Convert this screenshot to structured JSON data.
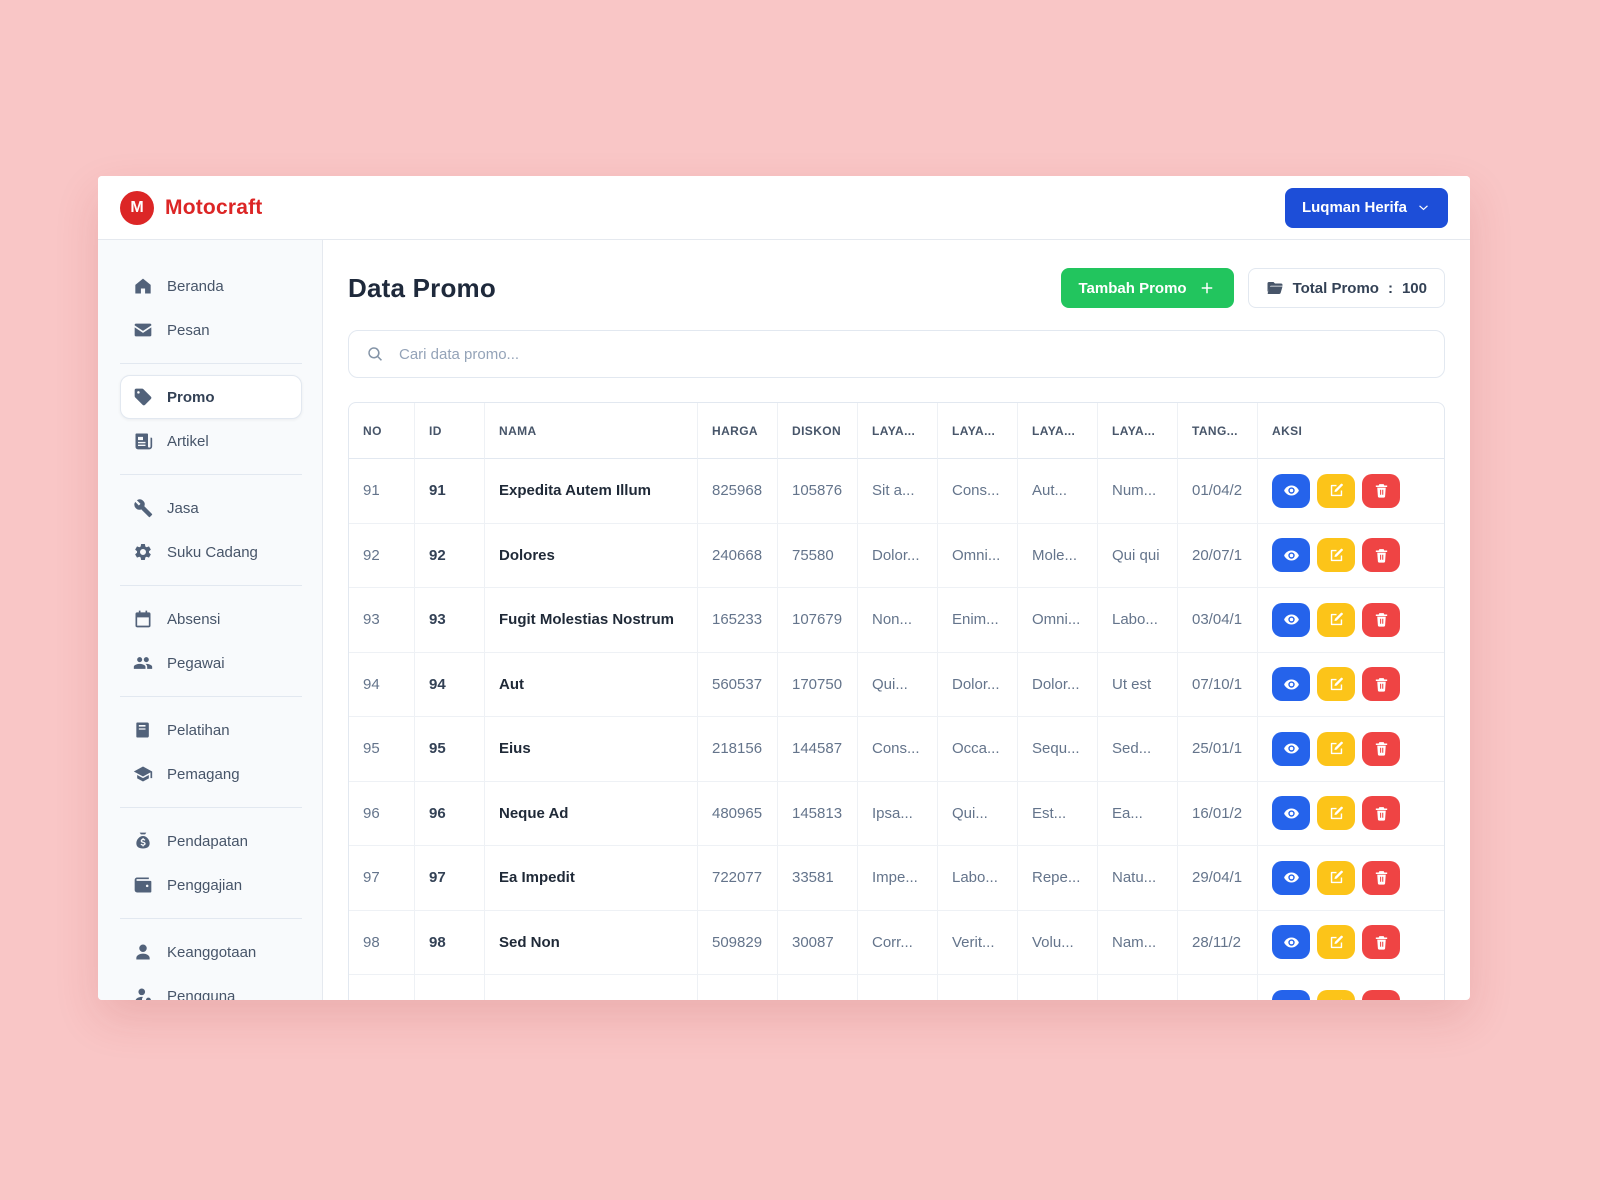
{
  "colors": {
    "background_pink": "#f9c6c6",
    "brand_red": "#dc2626",
    "user_button_blue": "#1d4ed8",
    "add_button_green": "#22c55e",
    "action_view_blue": "#2563eb",
    "action_edit_yellow": "#fcc419",
    "action_delete_red": "#ef4444"
  },
  "header": {
    "brand": "Motocraft",
    "brand_initial": "M",
    "user_button": {
      "label": "Luqman Herifa",
      "icon": "chevron-down-icon"
    }
  },
  "sidebar": {
    "groups": [
      [
        {
          "label": "Beranda",
          "icon": "home-icon"
        },
        {
          "label": "Pesan",
          "icon": "mail-icon"
        }
      ],
      [
        {
          "label": "Promo",
          "icon": "tag-icon",
          "active": true
        },
        {
          "label": "Artikel",
          "icon": "newspaper-icon"
        }
      ],
      [
        {
          "label": "Jasa",
          "icon": "wrench-icon"
        },
        {
          "label": "Suku Cadang",
          "icon": "gear-icon"
        }
      ],
      [
        {
          "label": "Absensi",
          "icon": "calendar-icon"
        },
        {
          "label": "Pegawai",
          "icon": "people-icon"
        }
      ],
      [
        {
          "label": "Pelatihan",
          "icon": "book-icon"
        },
        {
          "label": "Pemagang",
          "icon": "graduate-icon"
        }
      ],
      [
        {
          "label": "Pendapatan",
          "icon": "moneybag-icon"
        },
        {
          "label": "Penggajian",
          "icon": "wallet-icon"
        }
      ],
      [
        {
          "label": "Keanggotaan",
          "icon": "user-icon"
        },
        {
          "label": "Pengguna",
          "icon": "usergear-icon"
        }
      ]
    ]
  },
  "main": {
    "title": "Data Promo",
    "add_button": {
      "label": "Tambah Promo",
      "icon": "plus-icon"
    },
    "total_badge": {
      "icon": "folder-icon",
      "label": "Total Promo",
      "separator": ":",
      "value": "100"
    },
    "search": {
      "icon": "search-icon",
      "placeholder": "Cari data promo..."
    },
    "table": {
      "columns": [
        {
          "key": "no",
          "label": "NO"
        },
        {
          "key": "id",
          "label": "ID"
        },
        {
          "key": "nama",
          "label": "NAMA"
        },
        {
          "key": "harga",
          "label": "HARGA"
        },
        {
          "key": "diskon",
          "label": "DISKON"
        },
        {
          "key": "laya1",
          "label": "LAYA..."
        },
        {
          "key": "laya2",
          "label": "LAYA..."
        },
        {
          "key": "laya3",
          "label": "LAYA..."
        },
        {
          "key": "laya4",
          "label": "LAYA..."
        },
        {
          "key": "tanggal",
          "label": "TANG..."
        },
        {
          "key": "aksi",
          "label": "AKSI"
        }
      ],
      "actions": [
        {
          "name": "view",
          "icon": "eye-icon"
        },
        {
          "name": "edit",
          "icon": "edit-icon"
        },
        {
          "name": "delete",
          "icon": "trash-icon"
        }
      ],
      "rows": [
        {
          "no": "91",
          "id": "91",
          "nama": "Expedita Autem Illum",
          "harga": "825968",
          "diskon": "105876",
          "laya1": "Sit a...",
          "laya2": "Cons...",
          "laya3": "Aut...",
          "laya4": "Num...",
          "tanggal": "01/04/2"
        },
        {
          "no": "92",
          "id": "92",
          "nama": "Dolores",
          "harga": "240668",
          "diskon": "75580",
          "laya1": "Dolor...",
          "laya2": "Omni...",
          "laya3": "Mole...",
          "laya4": "Qui qui",
          "tanggal": "20/07/1"
        },
        {
          "no": "93",
          "id": "93",
          "nama": "Fugit Molestias Nostrum",
          "harga": "165233",
          "diskon": "107679",
          "laya1": "Non...",
          "laya2": "Enim...",
          "laya3": "Omni...",
          "laya4": "Labo...",
          "tanggal": "03/04/1"
        },
        {
          "no": "94",
          "id": "94",
          "nama": "Aut",
          "harga": "560537",
          "diskon": "170750",
          "laya1": "Qui...",
          "laya2": "Dolor...",
          "laya3": "Dolor...",
          "laya4": "Ut est",
          "tanggal": "07/10/1"
        },
        {
          "no": "95",
          "id": "95",
          "nama": "Eius",
          "harga": "218156",
          "diskon": "144587",
          "laya1": "Cons...",
          "laya2": "Occa...",
          "laya3": "Sequ...",
          "laya4": "Sed...",
          "tanggal": "25/01/1"
        },
        {
          "no": "96",
          "id": "96",
          "nama": "Neque Ad",
          "harga": "480965",
          "diskon": "145813",
          "laya1": "Ipsa...",
          "laya2": "Qui...",
          "laya3": "Est...",
          "laya4": "Ea...",
          "tanggal": "16/01/2"
        },
        {
          "no": "97",
          "id": "97",
          "nama": "Ea Impedit",
          "harga": "722077",
          "diskon": "33581",
          "laya1": "Impe...",
          "laya2": "Labo...",
          "laya3": "Repe...",
          "laya4": "Natu...",
          "tanggal": "29/04/1"
        },
        {
          "no": "98",
          "id": "98",
          "nama": "Sed Non",
          "harga": "509829",
          "diskon": "30087",
          "laya1": "Corr...",
          "laya2": "Verit...",
          "laya3": "Volu...",
          "laya4": "Nam...",
          "tanggal": "28/11/2"
        },
        {
          "no": "",
          "id": "",
          "nama": "",
          "harga": "",
          "diskon": "",
          "laya1": "",
          "laya2": "",
          "laya3": "",
          "laya4": "",
          "tanggal": "",
          "partial": true
        }
      ]
    }
  }
}
